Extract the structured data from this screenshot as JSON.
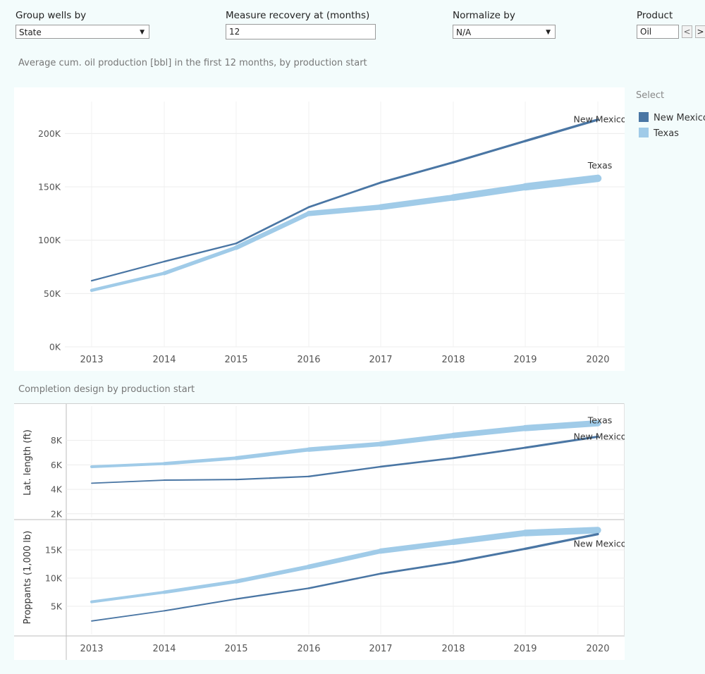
{
  "controls": {
    "group_by": {
      "label": "Group wells by",
      "value": "State"
    },
    "recovery": {
      "label": "Measure recovery at (months)",
      "value": "12"
    },
    "normalize": {
      "label": "Normalize by",
      "value": "N/A"
    },
    "product": {
      "label": "Product",
      "value": "Oil",
      "prev": "<",
      "next": ">"
    }
  },
  "titles": {
    "top": "Average cum. oil production [bbl] in the first 12 months, by production start",
    "bottom": "Completion design by production start"
  },
  "legend": {
    "title": "Select",
    "items": [
      {
        "label": "New Mexico",
        "color": "#4a76a4"
      },
      {
        "label": "Texas",
        "color": "#a0cbe8"
      }
    ]
  },
  "colors": {
    "new_mexico": "#4a76a4",
    "texas": "#a0cbe8"
  },
  "chart_data": [
    {
      "type": "line",
      "x": [
        "2013",
        "2014",
        "2015",
        "2016",
        "2017",
        "2018",
        "2019",
        "2020"
      ],
      "ylim": [
        0,
        230000
      ],
      "yticks": [
        0,
        50000,
        100000,
        150000,
        200000
      ],
      "ytick_labels": [
        "0K",
        "50K",
        "100K",
        "150K",
        "200K"
      ],
      "series": [
        {
          "name": "New Mexico",
          "values": [
            62000,
            80000,
            97000,
            131000,
            154000,
            173000,
            193000,
            213000
          ],
          "label": "New Mexico"
        },
        {
          "name": "Texas",
          "values": [
            53000,
            69000,
            93000,
            125000,
            131000,
            140000,
            150000,
            158000
          ],
          "label": "Texas"
        }
      ]
    },
    {
      "type": "line",
      "ylabel": "Lat. length (ft)",
      "x": [
        "2013",
        "2014",
        "2015",
        "2016",
        "2017",
        "2018",
        "2019",
        "2020"
      ],
      "ylim": [
        1700,
        10800
      ],
      "yticks": [
        2000,
        4000,
        6000,
        8000
      ],
      "ytick_labels": [
        "2K",
        "4K",
        "6K",
        "8K"
      ],
      "series": [
        {
          "name": "New Mexico",
          "values": [
            4500,
            4750,
            4800,
            5050,
            5850,
            6550,
            7400,
            8300
          ],
          "label": "New Mexico"
        },
        {
          "name": "Texas",
          "values": [
            5850,
            6100,
            6550,
            7250,
            7700,
            8400,
            9000,
            9400
          ],
          "label": "Texas"
        }
      ]
    },
    {
      "type": "line",
      "ylabel": "Proppants (1,000 lb)",
      "x": [
        "2013",
        "2014",
        "2015",
        "2016",
        "2017",
        "2018",
        "2019",
        "2020"
      ],
      "xlabels": [
        "2013",
        "2014",
        "2015",
        "2016",
        "2017",
        "2018",
        "2019",
        "2020"
      ],
      "ylim": [
        0,
        20000
      ],
      "yticks": [
        5000,
        10000,
        15000
      ],
      "ytick_labels": [
        "5K",
        "10K",
        "15K"
      ],
      "series": [
        {
          "name": "New Mexico",
          "values": [
            2400,
            4200,
            6300,
            8200,
            10800,
            12800,
            15200,
            17800
          ],
          "label": "New Mexico"
        },
        {
          "name": "Texas",
          "values": [
            5800,
            7500,
            9400,
            12000,
            14800,
            16400,
            18000,
            18500
          ],
          "label": ""
        }
      ]
    }
  ]
}
